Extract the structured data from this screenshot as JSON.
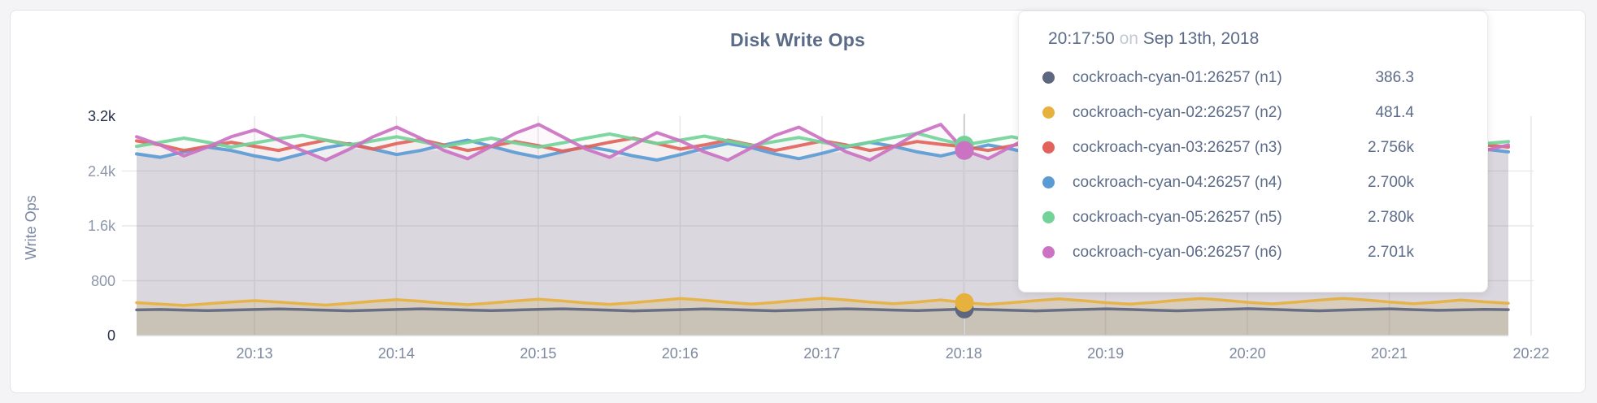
{
  "page": {
    "background": "#f4f4f6"
  },
  "chart": {
    "title": "Disk Write Ops",
    "y_axis_label": "Write Ops"
  },
  "tooltip": {
    "time": "20:17:50",
    "conjunction": "on",
    "date": "Sep 13th, 2018",
    "rows": [
      {
        "label": "cockroach-cyan-01:26257 (n1)",
        "value": "386.3",
        "color": "#5e6780"
      },
      {
        "label": "cockroach-cyan-02:26257 (n2)",
        "value": "481.4",
        "color": "#e7b13e"
      },
      {
        "label": "cockroach-cyan-03:26257 (n3)",
        "value": "2.756k",
        "color": "#e2635c"
      },
      {
        "label": "cockroach-cyan-04:26257 (n4)",
        "value": "2.700k",
        "color": "#5b9bd5"
      },
      {
        "label": "cockroach-cyan-05:26257 (n5)",
        "value": "2.780k",
        "color": "#73d298"
      },
      {
        "label": "cockroach-cyan-06:26257 (n6)",
        "value": "2.701k",
        "color": "#cc72c3"
      }
    ]
  },
  "chart_data": {
    "type": "line",
    "title": "Disk Write Ops",
    "xlabel": "",
    "ylabel": "Write Ops",
    "ylim": [
      0,
      3200
    ],
    "grid": true,
    "legend_position": "tooltip-overlay",
    "y_ticks": [
      {
        "value": 0,
        "label": "0",
        "emphasis": true
      },
      {
        "value": 800,
        "label": "800",
        "emphasis": false
      },
      {
        "value": 1600,
        "label": "1.6k",
        "emphasis": false
      },
      {
        "value": 2400,
        "label": "2.4k",
        "emphasis": false
      },
      {
        "value": 3200,
        "label": "3.2k",
        "emphasis": true
      }
    ],
    "x_ticks": [
      "20:13",
      "20:14",
      "20:15",
      "20:16",
      "20:17",
      "20:18",
      "20:19",
      "20:20",
      "20:21",
      "20:22"
    ],
    "hover": {
      "time": "20:17:50",
      "date": "Sep 13th, 2018",
      "x_tick": "20:18"
    },
    "series": [
      {
        "name": "cockroach-cyan-01:26257 (n1)",
        "color": "#5e6780",
        "highlight": 386.3,
        "values": [
          375,
          380,
          372,
          365,
          372,
          380,
          388,
          380,
          370,
          362,
          370,
          380,
          390,
          382,
          372,
          365,
          372,
          382,
          390,
          380,
          370,
          360,
          368,
          378,
          388,
          380,
          370,
          362,
          370,
          380,
          390,
          382,
          372,
          365,
          375,
          386.3,
          378,
          368,
          360,
          370,
          380,
          390,
          380,
          370,
          362,
          372,
          382,
          392,
          382,
          370,
          362,
          372,
          382,
          390,
          378,
          368,
          375,
          383,
          378
        ]
      },
      {
        "name": "cockroach-cyan-02:26257 (n2)",
        "color": "#e7b13e",
        "highlight": 481.4,
        "values": [
          480,
          460,
          440,
          465,
          490,
          510,
          490,
          465,
          445,
          470,
          500,
          525,
          500,
          470,
          450,
          475,
          505,
          530,
          505,
          475,
          455,
          480,
          510,
          540,
          515,
          485,
          460,
          485,
          515,
          545,
          520,
          490,
          465,
          490,
          520,
          481.4,
          455,
          480,
          510,
          535,
          510,
          480,
          460,
          485,
          515,
          540,
          515,
          485,
          462,
          487,
          517,
          542,
          518,
          488,
          465,
          490,
          518,
          492,
          470
        ]
      },
      {
        "name": "cockroach-cyan-03:26257 (n3)",
        "color": "#e2635c",
        "highlight": 2756,
        "values": [
          2840,
          2780,
          2700,
          2760,
          2820,
          2760,
          2700,
          2780,
          2850,
          2790,
          2720,
          2800,
          2860,
          2780,
          2700,
          2760,
          2830,
          2770,
          2690,
          2750,
          2820,
          2880,
          2800,
          2720,
          2780,
          2850,
          2780,
          2700,
          2770,
          2840,
          2780,
          2700,
          2760,
          2830,
          2790,
          2756,
          2700,
          2770,
          2840,
          2890,
          2810,
          2730,
          2790,
          2850,
          2780,
          2700,
          2760,
          2830,
          2770,
          2690,
          2750,
          2820,
          2870,
          2790,
          2710,
          2770,
          2840,
          2780,
          2750
        ]
      },
      {
        "name": "cockroach-cyan-04:26257 (n4)",
        "color": "#5b9bd5",
        "highlight": 2700,
        "values": [
          2650,
          2600,
          2680,
          2750,
          2700,
          2620,
          2560,
          2650,
          2740,
          2800,
          2720,
          2640,
          2700,
          2780,
          2850,
          2760,
          2670,
          2600,
          2680,
          2760,
          2700,
          2620,
          2560,
          2640,
          2730,
          2800,
          2740,
          2650,
          2580,
          2660,
          2750,
          2820,
          2760,
          2680,
          2620,
          2700,
          2780,
          2720,
          2640,
          2580,
          2660,
          2750,
          2700,
          2620,
          2690,
          2770,
          2840,
          2760,
          2680,
          2600,
          2660,
          2740,
          2800,
          2730,
          2650,
          2700,
          2780,
          2720,
          2680
        ]
      },
      {
        "name": "cockroach-cyan-05:26257 (n5)",
        "color": "#73d298",
        "highlight": 2780,
        "values": [
          2760,
          2820,
          2880,
          2820,
          2750,
          2810,
          2870,
          2920,
          2850,
          2780,
          2840,
          2900,
          2830,
          2760,
          2820,
          2880,
          2810,
          2750,
          2810,
          2880,
          2940,
          2870,
          2800,
          2850,
          2910,
          2840,
          2770,
          2830,
          2890,
          2820,
          2760,
          2820,
          2890,
          2950,
          2860,
          2780,
          2840,
          2900,
          2830,
          2770,
          2830,
          2900,
          2960,
          2880,
          2810,
          2860,
          2920,
          2850,
          2780,
          2830,
          2890,
          2820,
          2760,
          2820,
          2880,
          2940,
          2860,
          2800,
          2830
        ]
      },
      {
        "name": "cockroach-cyan-06:26257 (n6)",
        "color": "#cc72c3",
        "highlight": 2701,
        "values": [
          2900,
          2780,
          2620,
          2750,
          2900,
          3000,
          2850,
          2700,
          2560,
          2720,
          2900,
          3040,
          2880,
          2700,
          2580,
          2760,
          2950,
          3080,
          2900,
          2720,
          2600,
          2780,
          2960,
          2840,
          2680,
          2560,
          2740,
          2920,
          3040,
          2860,
          2680,
          2560,
          2750,
          2950,
          3080,
          2701,
          2580,
          2760,
          2940,
          2820,
          2660,
          2540,
          2730,
          2910,
          3030,
          2850,
          2670,
          2550,
          2740,
          2920,
          2800,
          2640,
          2560,
          2750,
          2930,
          3050,
          2870,
          2700,
          2780
        ]
      }
    ]
  }
}
